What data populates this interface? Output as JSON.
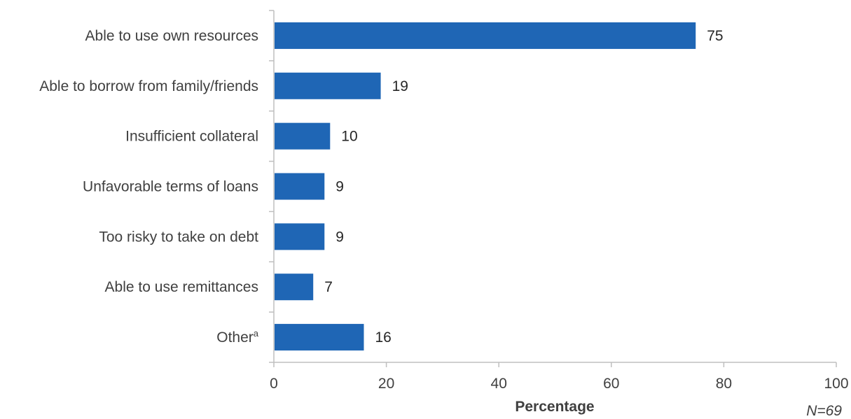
{
  "chart_data": {
    "type": "bar",
    "orientation": "horizontal",
    "categories": [
      "Able to use own resources",
      "Able to borrow from family/friends",
      "Insufficient collateral",
      "Unfavorable terms of loans",
      "Too risky to take on debt",
      "Able to use remittances",
      "Other"
    ],
    "category_superscripts": [
      "",
      "",
      "",
      "",
      "",
      "",
      "a"
    ],
    "values": [
      75,
      19,
      10,
      9,
      9,
      7,
      16
    ],
    "value_labels": [
      "75",
      "19",
      "10",
      "9",
      "9",
      "7",
      "16"
    ],
    "bar_color": "#1f66b5",
    "xlabel": "Percentage",
    "ylabel": "",
    "xlim": [
      0,
      100
    ],
    "xticks": [
      0,
      20,
      40,
      60,
      80,
      100
    ],
    "xtick_labels": [
      "0",
      "20",
      "40",
      "60",
      "80",
      "100"
    ],
    "grid": false,
    "note": "N=69"
  }
}
